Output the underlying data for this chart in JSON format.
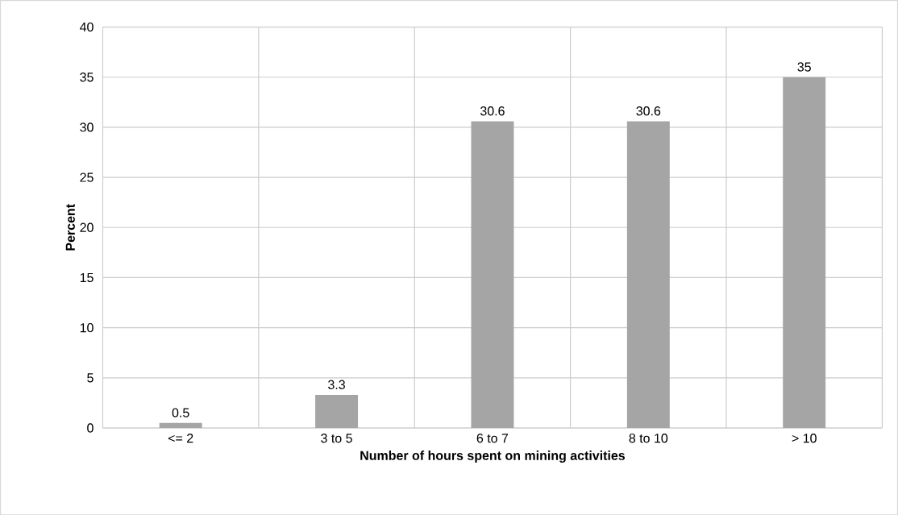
{
  "chart_data": {
    "type": "bar",
    "xlabel": "Number of hours spent on mining activities",
    "ylabel": "Percent",
    "categories": [
      "<= 2",
      "3 to 5",
      "6 to 7",
      "8 to 10",
      "> 10"
    ],
    "values": [
      0.5,
      3.3,
      30.6,
      30.6,
      35
    ],
    "color": "#a5a5a5",
    "ylim": [
      0,
      40
    ],
    "yticks": [
      0,
      5,
      10,
      15,
      20,
      25,
      30,
      35,
      40
    ],
    "grid": true,
    "data_labels": true
  }
}
